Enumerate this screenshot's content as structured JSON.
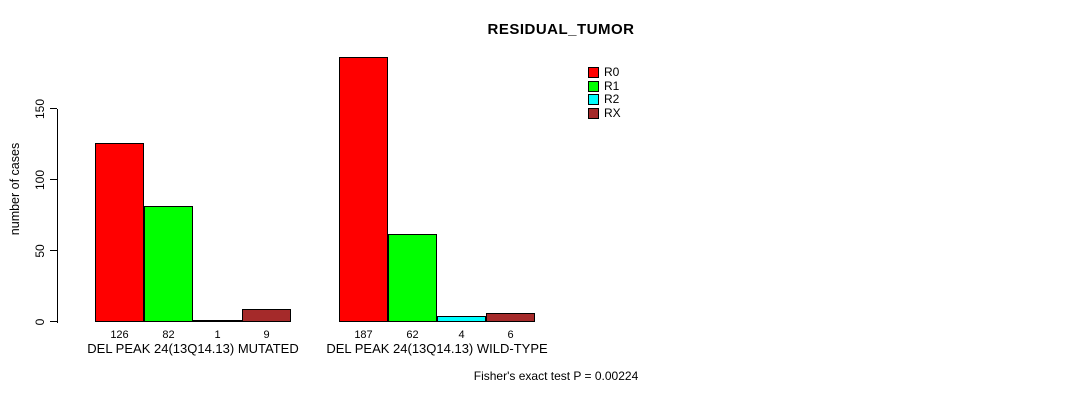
{
  "chart_data": {
    "type": "bar",
    "title": "RESIDUAL_TUMOR",
    "ylabel": "number of cases",
    "xlabel": "",
    "categories": [
      "DEL PEAK 24(13Q14.13) MUTATED",
      "DEL PEAK 24(13Q14.13) WILD-TYPE"
    ],
    "series": [
      {
        "name": "R0",
        "color": "#ff0000",
        "values": [
          126,
          187
        ]
      },
      {
        "name": "R1",
        "color": "#00ff00",
        "values": [
          82,
          62
        ]
      },
      {
        "name": "R2",
        "color": "#00ffff",
        "values": [
          1,
          4
        ]
      },
      {
        "name": "RX",
        "color": "#a52a2a",
        "values": [
          9,
          6
        ]
      }
    ],
    "bar_value_labels": [
      [
        "126",
        "82",
        "1",
        "9"
      ],
      [
        "187",
        "62",
        "4",
        "6"
      ]
    ],
    "yticks": [
      0,
      50,
      100,
      150
    ],
    "ylim": [
      0,
      187
    ],
    "grid": false,
    "legend_position": "top-right",
    "annotation": "Fisher's exact test P = 0.00224"
  },
  "colors": {
    "background": "#ffffff",
    "axis": "#000000",
    "text": "#000000"
  }
}
